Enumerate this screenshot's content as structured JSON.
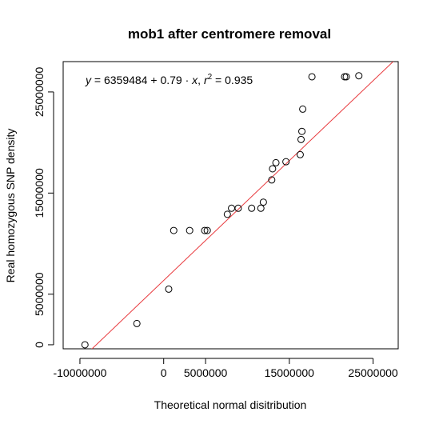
{
  "chart_data": {
    "type": "scatter",
    "title": "mob1 after centromere removal",
    "xlabel": "Theoretical normal disitribution",
    "ylabel": "Real homozygous SNP density",
    "xlim": [
      -12000000,
      28000000
    ],
    "ylim": [
      -400000,
      28000000
    ],
    "xticks": [
      -10000000,
      0,
      5000000,
      15000000,
      25000000
    ],
    "xtick_labels": [
      "-10000000",
      "0",
      "5000000",
      "15000000",
      "25000000"
    ],
    "yticks": [
      0,
      5000000,
      15000000,
      25000000
    ],
    "ytick_labels": [
      "0",
      "5000000",
      "15000000",
      "25000000"
    ],
    "grid": false,
    "point_color": "#000000",
    "fit_line_color": "#e8393d",
    "fit_line": {
      "intercept": 6359484,
      "slope": 0.79
    },
    "annotation": {
      "y_var": "y",
      "intercept_text": "6359484",
      "slope_text": "0.79",
      "x_var": "x",
      "r2_var": "r",
      "r2_exp": "2",
      "r2_value": "0.935"
    },
    "points": [
      {
        "x": -9400000,
        "y": 0
      },
      {
        "x": -3200000,
        "y": 2100000
      },
      {
        "x": 600000,
        "y": 5500000
      },
      {
        "x": 1200000,
        "y": 11300000
      },
      {
        "x": 3100000,
        "y": 11300000
      },
      {
        "x": 4900000,
        "y": 11300000
      },
      {
        "x": 5200000,
        "y": 11300000
      },
      {
        "x": 7600000,
        "y": 12900000
      },
      {
        "x": 8100000,
        "y": 13500000
      },
      {
        "x": 8900000,
        "y": 13500000
      },
      {
        "x": 10500000,
        "y": 13500000
      },
      {
        "x": 11600000,
        "y": 13500000
      },
      {
        "x": 11900000,
        "y": 14100000
      },
      {
        "x": 12900000,
        "y": 16300000
      },
      {
        "x": 13000000,
        "y": 17400000
      },
      {
        "x": 13400000,
        "y": 18000000
      },
      {
        "x": 14600000,
        "y": 18100000
      },
      {
        "x": 16300000,
        "y": 18800000
      },
      {
        "x": 16400000,
        "y": 20300000
      },
      {
        "x": 16500000,
        "y": 21100000
      },
      {
        "x": 16600000,
        "y": 23300000
      },
      {
        "x": 17700000,
        "y": 26500000
      },
      {
        "x": 21600000,
        "y": 26500000
      },
      {
        "x": 21800000,
        "y": 26500000
      },
      {
        "x": 23300000,
        "y": 26600000
      }
    ]
  }
}
